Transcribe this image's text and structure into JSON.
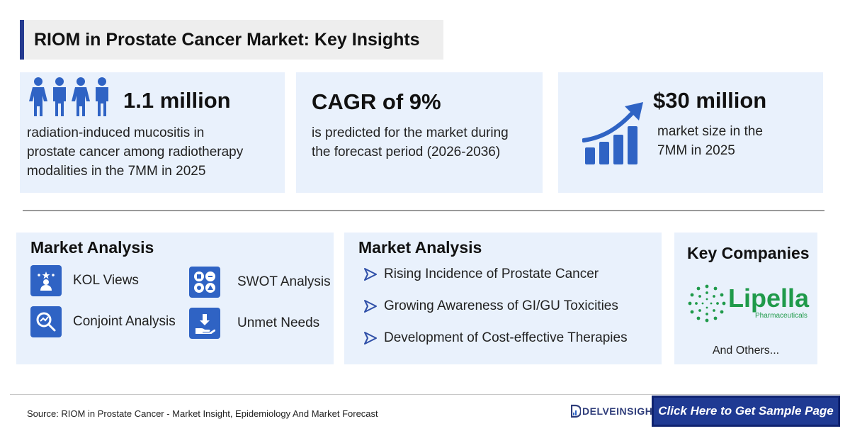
{
  "title": "RIOM in Prostate Cancer Market: Key Insights",
  "stats": [
    {
      "value": "1.1 million",
      "description": [
        "radiation-induced mucositis in",
        "prostate cancer among radiotherapy",
        "modalities in the 7MM in 2025"
      ],
      "icon": "people-icon"
    },
    {
      "value": "CAGR of 9%",
      "description": [
        "is predicted for the market during",
        "the forecast period (2026-2036)"
      ]
    },
    {
      "value": "$30 million",
      "description": [
        "market size in the",
        "7MM in 2025"
      ],
      "icon": "growth-chart-icon"
    }
  ],
  "analysis_left": {
    "title": "Market Analysis",
    "items": [
      {
        "label": "KOL Views",
        "icon": "kol-icon"
      },
      {
        "label": "SWOT Analysis",
        "icon": "swot-icon"
      },
      {
        "label": "Conjoint Analysis",
        "icon": "conjoint-icon"
      },
      {
        "label": "Unmet Needs",
        "icon": "unmet-needs-icon"
      }
    ]
  },
  "analysis_right": {
    "title": "Market Analysis",
    "bullets": [
      "Rising Incidence of Prostate Cancer",
      "Growing Awareness of GI/GU Toxicities",
      "Development of Cost-effective Therapies"
    ]
  },
  "companies": {
    "title": "Key Companies",
    "logo_name": "Lipella",
    "logo_sub": "Pharmaceuticals",
    "others": "And Others..."
  },
  "footer": {
    "source": "Source: RIOM in Prostate Cancer - Market Insight, Epidemiology And Market Forecast",
    "brand": "DELVEINSIGHT",
    "cta": "Click Here to Get Sample Page"
  },
  "colors": {
    "accent": "#2f63c4",
    "card_bg": "#e9f1fc",
    "cta_bg": "#1f3a93",
    "logo_green": "#1f9a4a"
  }
}
